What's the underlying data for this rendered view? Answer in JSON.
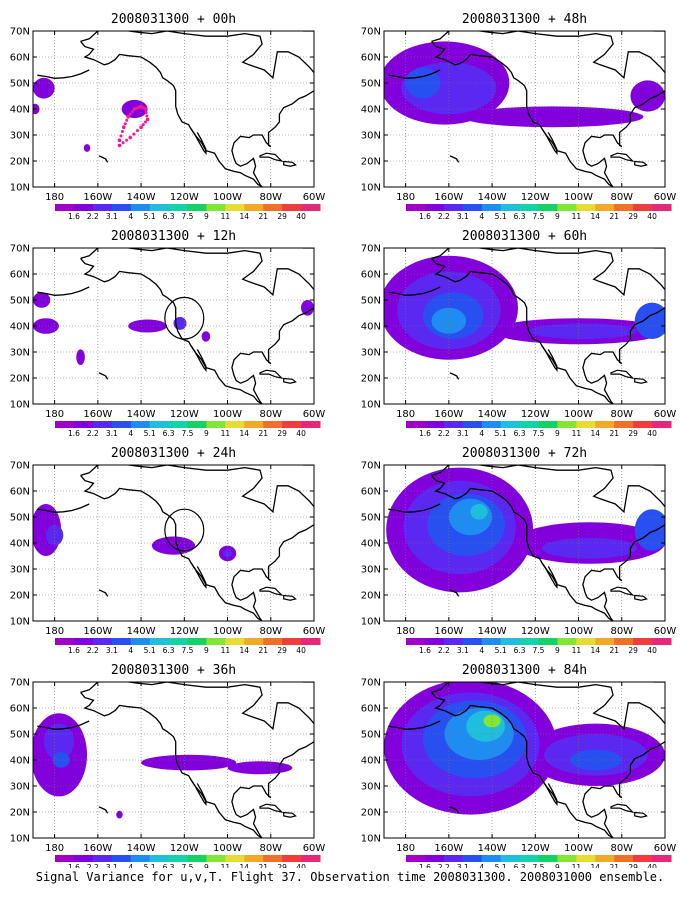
{
  "chart_data": {
    "type": "heatmap",
    "caption": "Signal Variance for u,v,T. Flight 37. Observation time 2008031300. 2008031000 ensemble.",
    "x_ticks": [
      "180",
      "160W",
      "140W",
      "120W",
      "100W",
      "80W",
      "60W"
    ],
    "x_tick_values": [
      180,
      160,
      140,
      120,
      100,
      80,
      60
    ],
    "y_ticks": [
      "10N",
      "20N",
      "30N",
      "40N",
      "50N",
      "60N",
      "70N"
    ],
    "y_tick_values": [
      10,
      20,
      30,
      40,
      50,
      60,
      70
    ],
    "xlim_west_longitude": [
      190,
      60
    ],
    "ylim": [
      10,
      70
    ],
    "grid": true,
    "colorbar": {
      "labels": [
        "1.6",
        "2.2",
        "3.1",
        "4",
        "5.1",
        "6.3",
        "7.5",
        "9",
        "11",
        "14",
        "21",
        "29",
        "40"
      ],
      "colors": [
        "#a000c8",
        "#8200dc",
        "#5a28f0",
        "#2850f0",
        "#1e8cf0",
        "#1ebedc",
        "#14d2aa",
        "#14d264",
        "#82e632",
        "#e6dc32",
        "#f0aa28",
        "#f07028",
        "#f03c3c",
        "#e6287a"
      ]
    },
    "panels": [
      {
        "title": "2008031300 + 00h",
        "blobs": [
          {
            "lon": 185,
            "lat": 48,
            "rlon": 5,
            "rlat": 4,
            "level": 1
          },
          {
            "lon": 189,
            "lat": 40,
            "rlon": 2,
            "rlat": 2,
            "level": 1
          },
          {
            "lon": 143,
            "lat": 40,
            "rlon": 6,
            "rlat": 3.5,
            "level": 1
          },
          {
            "lon": 165,
            "lat": 25,
            "rlon": 1.5,
            "rlat": 1.5,
            "level": 1
          }
        ],
        "track": [
          [
            150,
            28
          ],
          [
            148,
            33
          ],
          [
            146,
            37
          ],
          [
            143,
            40
          ],
          [
            140,
            41
          ],
          [
            138,
            40
          ],
          [
            137,
            36
          ],
          [
            140,
            33
          ],
          [
            145,
            29
          ],
          [
            150,
            26
          ]
        ]
      },
      {
        "title": "2008031300 + 12h",
        "blobs": [
          {
            "lon": 186,
            "lat": 50,
            "rlon": 4,
            "rlat": 3,
            "level": 1
          },
          {
            "lon": 184,
            "lat": 40,
            "rlon": 6,
            "rlat": 3,
            "level": 1
          },
          {
            "lon": 137,
            "lat": 40,
            "rlon": 9,
            "rlat": 2.5,
            "level": 1
          },
          {
            "lon": 122,
            "lat": 41,
            "rlon": 3,
            "rlat": 2.5,
            "level": 2
          },
          {
            "lon": 110,
            "lat": 36,
            "rlon": 2,
            "rlat": 2,
            "level": 1
          },
          {
            "lon": 168,
            "lat": 28,
            "rlon": 2,
            "rlat": 3,
            "level": 1
          },
          {
            "lon": 63,
            "lat": 47,
            "rlon": 3,
            "rlat": 3,
            "level": 1
          }
        ],
        "circle": {
          "lon": 120,
          "lat": 43,
          "rlon": 9,
          "rlat": 8
        }
      },
      {
        "title": "2008031300 + 24h",
        "blobs": [
          {
            "lon": 184,
            "lat": 45,
            "rlon": 7,
            "rlat": 10,
            "level": 1
          },
          {
            "lon": 180,
            "lat": 43,
            "rlon": 4,
            "rlat": 4,
            "level": 2
          },
          {
            "lon": 125,
            "lat": 39,
            "rlon": 10,
            "rlat": 3.5,
            "level": 1
          },
          {
            "lon": 100,
            "lat": 36,
            "rlon": 4,
            "rlat": 3,
            "level": 1
          },
          {
            "lon": 100,
            "lat": 36,
            "rlon": 2,
            "rlat": 1.5,
            "level": 2
          }
        ],
        "circle": {
          "lon": 120,
          "lat": 45,
          "rlon": 9,
          "rlat": 8
        }
      },
      {
        "title": "2008031300 + 36h",
        "blobs": [
          {
            "lon": 178,
            "lat": 42,
            "rlon": 13,
            "rlat": 16,
            "level": 1
          },
          {
            "lon": 178,
            "lat": 47,
            "rlon": 7,
            "rlat": 7,
            "level": 2
          },
          {
            "lon": 177,
            "lat": 40,
            "rlon": 4,
            "rlat": 3,
            "level": 3
          },
          {
            "lon": 118,
            "lat": 39,
            "rlon": 22,
            "rlat": 3,
            "level": 1
          },
          {
            "lon": 85,
            "lat": 37,
            "rlon": 15,
            "rlat": 2.5,
            "level": 1
          },
          {
            "lon": 150,
            "lat": 19,
            "rlon": 1.5,
            "rlat": 1.5,
            "level": 1
          }
        ]
      },
      {
        "title": "2008031300 + 48h",
        "blobs": [
          {
            "lon": 162,
            "lat": 50,
            "rlon": 30,
            "rlat": 16,
            "level": 1
          },
          {
            "lon": 160,
            "lat": 48,
            "rlon": 22,
            "rlat": 10,
            "level": 2
          },
          {
            "lon": 172,
            "lat": 50,
            "rlon": 8,
            "rlat": 6,
            "level": 3
          },
          {
            "lon": 112,
            "lat": 37,
            "rlon": 42,
            "rlat": 4,
            "level": 1
          },
          {
            "lon": 68,
            "lat": 45,
            "rlon": 8,
            "rlat": 6,
            "level": 1
          }
        ]
      },
      {
        "title": "2008031300 + 60h",
        "blobs": [
          {
            "lon": 160,
            "lat": 47,
            "rlon": 32,
            "rlat": 20,
            "level": 1
          },
          {
            "lon": 160,
            "lat": 46,
            "rlon": 24,
            "rlat": 15,
            "level": 2
          },
          {
            "lon": 158,
            "lat": 44,
            "rlon": 14,
            "rlat": 9,
            "level": 3
          },
          {
            "lon": 160,
            "lat": 42,
            "rlon": 8,
            "rlat": 5,
            "level": 4
          },
          {
            "lon": 100,
            "lat": 38,
            "rlon": 40,
            "rlat": 5,
            "level": 1
          },
          {
            "lon": 98,
            "lat": 38,
            "rlon": 25,
            "rlat": 3,
            "level": 2
          },
          {
            "lon": 66,
            "lat": 42,
            "rlon": 8,
            "rlat": 7,
            "level": 3
          }
        ]
      },
      {
        "title": "2008031300 + 72h",
        "blobs": [
          {
            "lon": 155,
            "lat": 45,
            "rlon": 34,
            "rlat": 24,
            "level": 1
          },
          {
            "lon": 155,
            "lat": 46,
            "rlon": 26,
            "rlat": 18,
            "level": 2
          },
          {
            "lon": 152,
            "lat": 47,
            "rlon": 18,
            "rlat": 12,
            "level": 3
          },
          {
            "lon": 150,
            "lat": 50,
            "rlon": 10,
            "rlat": 7,
            "level": 4
          },
          {
            "lon": 146,
            "lat": 52,
            "rlon": 4,
            "rlat": 3,
            "level": 5
          },
          {
            "lon": 95,
            "lat": 40,
            "rlon": 35,
            "rlat": 8,
            "level": 1
          },
          {
            "lon": 95,
            "lat": 38,
            "rlon": 22,
            "rlat": 4,
            "level": 2
          },
          {
            "lon": 66,
            "lat": 45,
            "rlon": 8,
            "rlat": 8,
            "level": 3
          }
        ]
      },
      {
        "title": "2008031300 + 84h",
        "blobs": [
          {
            "lon": 150,
            "lat": 45,
            "rlon": 40,
            "rlat": 26,
            "level": 1
          },
          {
            "lon": 150,
            "lat": 46,
            "rlon": 32,
            "rlat": 20,
            "level": 2
          },
          {
            "lon": 148,
            "lat": 48,
            "rlon": 24,
            "rlat": 15,
            "level": 3
          },
          {
            "lon": 146,
            "lat": 50,
            "rlon": 16,
            "rlat": 10,
            "level": 4
          },
          {
            "lon": 143,
            "lat": 53,
            "rlon": 9,
            "rlat": 6,
            "level": 5
          },
          {
            "lon": 140,
            "lat": 55,
            "rlon": 4,
            "rlat": 2.5,
            "level": 8
          },
          {
            "lon": 92,
            "lat": 42,
            "rlon": 32,
            "rlat": 12,
            "level": 1
          },
          {
            "lon": 92,
            "lat": 42,
            "rlon": 24,
            "rlat": 8,
            "level": 2
          },
          {
            "lon": 92,
            "lat": 40,
            "rlon": 12,
            "rlat": 4,
            "level": 3
          }
        ]
      }
    ]
  }
}
